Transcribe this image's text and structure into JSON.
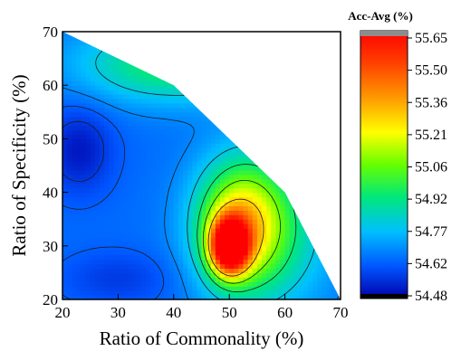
{
  "chart_data": {
    "type": "heatmap",
    "title": "",
    "xlabel": "Ratio of Commonality (%)",
    "ylabel": "Ratio of Specificity (%)",
    "xlim": [
      20,
      70
    ],
    "ylim": [
      20,
      70
    ],
    "x_ticks": [
      "20",
      "30",
      "40",
      "50",
      "60",
      "70"
    ],
    "y_ticks": [
      "20",
      "30",
      "40",
      "50",
      "60",
      "70"
    ],
    "colorbar": {
      "title": "Acc-Avg (%)",
      "ticks": [
        "55.65",
        "55.50",
        "55.36",
        "55.21",
        "55.06",
        "54.92",
        "54.77",
        "54.62",
        "54.48"
      ],
      "range": [
        54.48,
        55.7
      ]
    },
    "region_boundary": [
      [
        20,
        70
      ],
      [
        40,
        60
      ],
      [
        50,
        50
      ],
      [
        60,
        40
      ],
      [
        70,
        20
      ],
      [
        20,
        20
      ]
    ],
    "peak": {
      "x": 50,
      "y": 30,
      "value": 55.65
    },
    "contour_levels": [
      54.58,
      54.64,
      54.7,
      54.82,
      54.95,
      55.1,
      55.3
    ],
    "grid": false,
    "legend": "colorbar-right"
  }
}
